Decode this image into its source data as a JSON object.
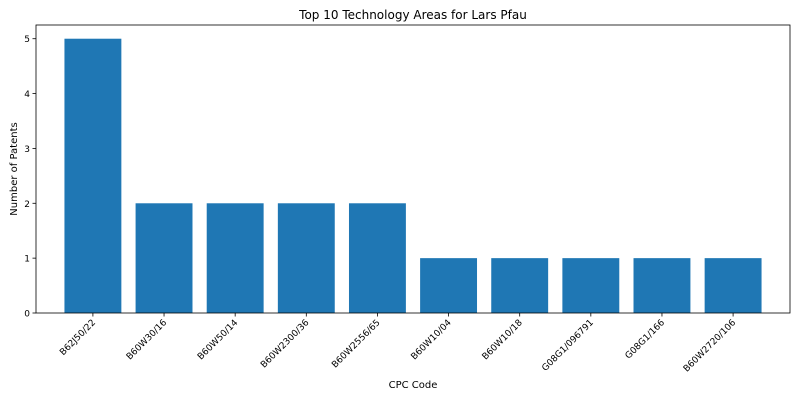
{
  "chart_data": {
    "type": "bar",
    "title": "Top 10 Technology Areas for Lars Pfau",
    "xlabel": "CPC Code",
    "ylabel": "Number of Patents",
    "categories": [
      "B62J50/22",
      "B60W30/16",
      "B60W50/14",
      "B60W2300/36",
      "B60W2556/65",
      "B60W10/04",
      "B60W10/18",
      "G08G1/096791",
      "G08G1/166",
      "B60W2720/106"
    ],
    "values": [
      5,
      2,
      2,
      2,
      2,
      1,
      1,
      1,
      1,
      1
    ],
    "ylim": [
      0,
      5.25
    ],
    "yticks": [
      0,
      1,
      2,
      3,
      4,
      5
    ],
    "grid": false,
    "bar_color": "#1f77b4"
  }
}
